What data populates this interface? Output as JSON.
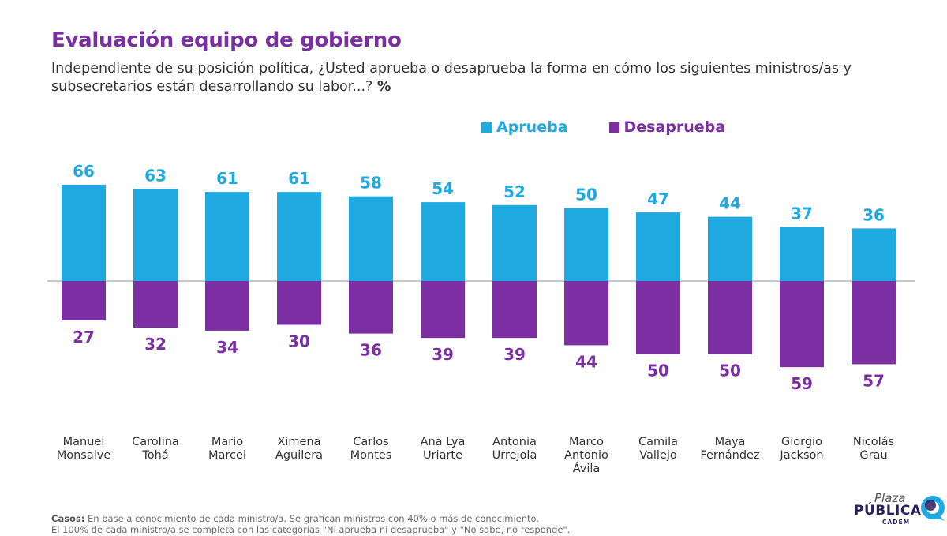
{
  "header": {
    "title": "Evaluación equipo de gobierno",
    "subtitle": "Independiente de su posición política, ¿Usted aprueba o desaprueba la forma en cómo los siguientes ministros/as y subsecretarios están desarrollando su labor...?",
    "subtitle_unit": "%"
  },
  "colors": {
    "aprueba": "#1fa9e1",
    "desaprueba": "#7b2fa3",
    "title": "#7a2fa0"
  },
  "chart_data": {
    "type": "bar",
    "title": "Evaluación equipo de gobierno",
    "categories": [
      "Manuel Monsalve",
      "Carolina Tohá",
      "Mario Marcel",
      "Ximena Aguilera",
      "Carlos Montes",
      "Ana Lya Uriarte",
      "Antonia Urrejola",
      "Marco Antonio Ávila",
      "Camila Vallejo",
      "Maya Fernández",
      "Giorgio Jackson",
      "Nicolás Grau"
    ],
    "category_lines": [
      [
        "Manuel",
        "Monsalve"
      ],
      [
        "Carolina",
        "Tohá"
      ],
      [
        "Mario",
        "Marcel"
      ],
      [
        "Ximena",
        "Aguilera"
      ],
      [
        "Carlos",
        "Montes"
      ],
      [
        "Ana Lya",
        "Uriarte"
      ],
      [
        "Antonia",
        "Urrejola"
      ],
      [
        "Marco",
        "Antonio",
        "Ávila"
      ],
      [
        "Camila",
        "Vallejo"
      ],
      [
        "Maya",
        "Fernández"
      ],
      [
        "Giorgio",
        "Jackson"
      ],
      [
        "Nicolás",
        "Grau"
      ]
    ],
    "series": [
      {
        "name": "Aprueba",
        "values": [
          66,
          63,
          61,
          61,
          58,
          54,
          52,
          50,
          47,
          44,
          37,
          36
        ]
      },
      {
        "name": "Desaprueba",
        "values": [
          27,
          32,
          34,
          30,
          36,
          39,
          39,
          44,
          50,
          50,
          59,
          57
        ]
      }
    ],
    "ylim": [
      -60,
      70
    ],
    "xlabel": "",
    "ylabel": "",
    "legend": "top-center",
    "grid": false
  },
  "footer": {
    "casos_label": "Casos:",
    "line1": " En base a conocimiento de cada ministro/a. Se grafican ministros con 40% o más de conocimiento.",
    "line2": "El 100% de cada ministro/a se completa con las categorías \"Ni aprueba ni desaprueba\" y \"No sabe, no responde\"."
  },
  "logo": {
    "plaza": "Plaza",
    "publica": "PÚBLICA",
    "cadem": "CADEM"
  }
}
